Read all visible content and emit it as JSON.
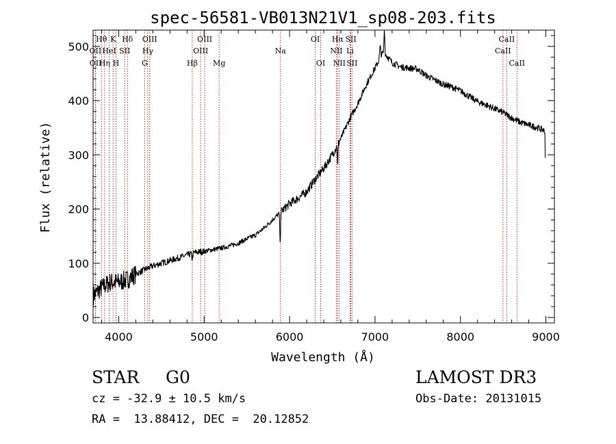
{
  "chart_data": {
    "type": "line",
    "title": "spec-56581-VB013N21V1_sp08-203.fits",
    "xlabel": "Wavelength (Å)",
    "ylabel": "Flux (relative)",
    "xlim": [
      3700,
      9100
    ],
    "ylim": [
      -10,
      530
    ],
    "xticks": [
      4000,
      5000,
      6000,
      7000,
      8000,
      9000
    ],
    "yticks": [
      0,
      100,
      200,
      300,
      400,
      500
    ],
    "x_minor_step": 200,
    "y_minor_step": 20,
    "colors": {
      "line": "#000000",
      "marker": "#a01010",
      "axes": "#000000"
    },
    "noise_seed": 7,
    "spectrum_anchors": [
      [
        3700,
        40
      ],
      [
        3800,
        55
      ],
      [
        3900,
        65
      ],
      [
        4000,
        65
      ],
      [
        4100,
        70
      ],
      [
        4200,
        80
      ],
      [
        4300,
        88
      ],
      [
        4400,
        95
      ],
      [
        4500,
        100
      ],
      [
        4600,
        105
      ],
      [
        4700,
        110
      ],
      [
        4800,
        115
      ],
      [
        4900,
        120
      ],
      [
        5000,
        122
      ],
      [
        5100,
        125
      ],
      [
        5200,
        128
      ],
      [
        5300,
        132
      ],
      [
        5400,
        137
      ],
      [
        5500,
        145
      ],
      [
        5600,
        152
      ],
      [
        5700,
        165
      ],
      [
        5800,
        180
      ],
      [
        5900,
        195
      ],
      [
        6000,
        210
      ],
      [
        6100,
        220
      ],
      [
        6200,
        232
      ],
      [
        6300,
        255
      ],
      [
        6400,
        275
      ],
      [
        6500,
        300
      ],
      [
        6600,
        330
      ],
      [
        6700,
        365
      ],
      [
        6800,
        395
      ],
      [
        6900,
        430
      ],
      [
        7000,
        460
      ],
      [
        7100,
        490
      ],
      [
        7200,
        470
      ],
      [
        7300,
        462
      ],
      [
        7400,
        460
      ],
      [
        7500,
        458
      ],
      [
        7600,
        446
      ],
      [
        7700,
        438
      ],
      [
        7800,
        430
      ],
      [
        7900,
        425
      ],
      [
        8000,
        418
      ],
      [
        8100,
        408
      ],
      [
        8200,
        398
      ],
      [
        8300,
        392
      ],
      [
        8400,
        385
      ],
      [
        8500,
        378
      ],
      [
        8600,
        368
      ],
      [
        8700,
        360
      ],
      [
        8800,
        355
      ],
      [
        8900,
        350
      ],
      [
        8980,
        345
      ]
    ],
    "spectrum_features": [
      {
        "center": 7110,
        "depth": -50,
        "width": 6
      },
      {
        "center": 7060,
        "depth": -20,
        "width": 10
      },
      {
        "center": 5890,
        "depth": 60,
        "width": 6
      },
      {
        "center": 6563,
        "depth": 45,
        "width": 5
      },
      {
        "center": 4860,
        "depth": 10,
        "width": 8
      },
      {
        "center": 8995,
        "depth": 60,
        "width": 4
      }
    ],
    "spectrum_noise": [
      {
        "from": 3700,
        "to": 4200,
        "amp": 36
      },
      {
        "from": 4200,
        "to": 5000,
        "amp": 12
      },
      {
        "from": 5000,
        "to": 5900,
        "amp": 9
      },
      {
        "from": 5900,
        "to": 6600,
        "amp": 16
      },
      {
        "from": 6600,
        "to": 9100,
        "amp": 12
      }
    ],
    "line_markers": [
      {
        "label": "Hθ",
        "wavelength": 3798,
        "row": 0
      },
      {
        "label": "OII",
        "wavelength": 3727,
        "row": 1
      },
      {
        "label": "OII",
        "wavelength": 3729,
        "row": 2
      },
      {
        "label": "HeI",
        "wavelength": 3889,
        "row": 1
      },
      {
        "label": "Hη",
        "wavelength": 3835,
        "row": 2
      },
      {
        "label": "K",
        "wavelength": 3934,
        "row": 0
      },
      {
        "label": "SII",
        "wavelength": 4070,
        "row": 1
      },
      {
        "label": "H",
        "wavelength": 3968,
        "row": 2
      },
      {
        "label": "Hδ",
        "wavelength": 4102,
        "row": 0
      },
      {
        "label": "OIII",
        "wavelength": 4363,
        "row": 0
      },
      {
        "label": "Hγ",
        "wavelength": 4340,
        "row": 1
      },
      {
        "label": "G",
        "wavelength": 4304,
        "row": 2
      },
      {
        "label": "OIII",
        "wavelength": 5007,
        "row": 0
      },
      {
        "label": "OIII",
        "wavelength": 4959,
        "row": 1
      },
      {
        "label": "Hβ",
        "wavelength": 4861,
        "row": 2
      },
      {
        "label": "Mg",
        "wavelength": 5175,
        "row": 2
      },
      {
        "label": "Na",
        "wavelength": 5893,
        "row": 1
      },
      {
        "label": "OI",
        "wavelength": 6300,
        "row": 0
      },
      {
        "label": "OI",
        "wavelength": 6364,
        "row": 2
      },
      {
        "label": "Hα",
        "wavelength": 6563,
        "row": 0
      },
      {
        "label": "SII",
        "wavelength": 6717,
        "row": 0
      },
      {
        "label": "NII",
        "wavelength": 6548,
        "row": 1
      },
      {
        "label": "Li",
        "wavelength": 6708,
        "row": 1
      },
      {
        "label": "NII",
        "wavelength": 6583,
        "row": 2
      },
      {
        "label": "SII",
        "wavelength": 6731,
        "row": 2
      },
      {
        "label": "CaII",
        "wavelength": 8542,
        "row": 0
      },
      {
        "label": "CaII",
        "wavelength": 8498,
        "row": 1
      },
      {
        "label": "CaII",
        "wavelength": 8662,
        "row": 2
      }
    ]
  },
  "info": {
    "object_class": "STAR",
    "subclass": "G0",
    "survey": "LAMOST DR3",
    "redshift": "cz = -32.9 ± 10.5 km/s",
    "obs_date": "Obs-Date: 20131015",
    "coords": "RA =  13.88412, DEC =  20.12852"
  }
}
